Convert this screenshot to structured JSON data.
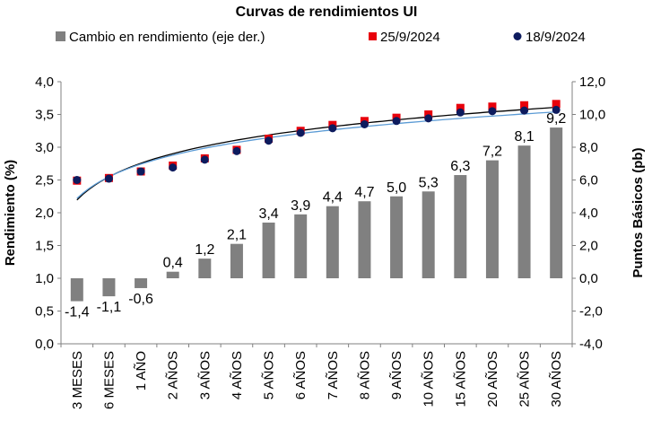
{
  "chart_data": {
    "type": "bar",
    "title": "Curvas de rendimientos UI",
    "ylabel": "Rendimiento (%)",
    "y2label": "Puntos Básicos (pb)",
    "ylim": [
      0,
      4
    ],
    "y2lim": [
      -4,
      12
    ],
    "y_ticks": [
      "0,0",
      "0,5",
      "1,0",
      "1,5",
      "2,0",
      "2,5",
      "3,0",
      "3,5",
      "4,0"
    ],
    "y2_ticks": [
      "-4,0",
      "-2,0",
      "0,0",
      "2,0",
      "4,0",
      "6,0",
      "8,0",
      "10,0",
      "12,0"
    ],
    "categories": [
      "3 MESES",
      "6 MESES",
      "1 AÑO",
      "2 AÑOS",
      "3 AÑOS",
      "4 AÑOS",
      "5 AÑOS",
      "6 AÑOS",
      "7 AÑOS",
      "8 AÑOS",
      "9 AÑOS",
      "10 AÑOS",
      "15 AÑOS",
      "20 AÑOS",
      "25 AÑOS",
      "30 AÑOS"
    ],
    "legend_placement": "top",
    "grid": false,
    "series": [
      {
        "name": "Cambio en rendimiento (eje der.)",
        "kind": "bar",
        "axis": "right",
        "color": "#808080",
        "values": [
          -1.4,
          -1.1,
          -0.6,
          0.4,
          1.2,
          2.1,
          3.4,
          3.9,
          4.4,
          4.7,
          5.0,
          5.3,
          6.3,
          7.2,
          8.1,
          9.2
        ],
        "labels": [
          "-1,4",
          "-1,1",
          "-0,6",
          "0,4",
          "1,2",
          "2,1",
          "3,4",
          "3,9",
          "4,4",
          "4,7",
          "5,0",
          "5,3",
          "6,3",
          "7,2",
          "8,1",
          "9,2"
        ]
      },
      {
        "name": "25/9/2024",
        "kind": "scatter",
        "axis": "left",
        "color": "#e8000b",
        "marker": "square",
        "values": [
          2.49,
          2.53,
          2.63,
          2.72,
          2.83,
          2.96,
          3.13,
          3.25,
          3.34,
          3.4,
          3.45,
          3.5,
          3.6,
          3.62,
          3.64,
          3.66
        ]
      },
      {
        "name": "18/9/2024",
        "kind": "scatter",
        "axis": "left",
        "color": "#0d1b5e",
        "marker": "circle",
        "values": [
          2.5,
          2.52,
          2.63,
          2.69,
          2.81,
          2.94,
          3.1,
          3.22,
          3.29,
          3.35,
          3.4,
          3.44,
          3.53,
          3.55,
          3.56,
          3.57
        ]
      }
    ]
  }
}
